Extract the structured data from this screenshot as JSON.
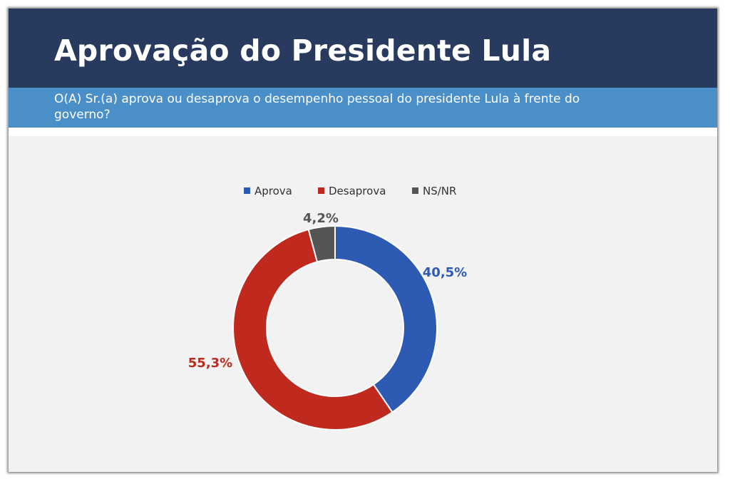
{
  "header": {
    "title": "Aprovação do Presidente Lula",
    "question": "O(A) Sr.(a) aprova ou desaprova o desempenho pessoal do presidente Lula à frente do governo?"
  },
  "chart_data": {
    "type": "pie",
    "donut": true,
    "legend_position": "top",
    "categories": [
      "Aprova",
      "Desaprova",
      "NS/NR"
    ],
    "values": [
      40.5,
      55.3,
      4.2
    ],
    "labels": [
      "40,5%",
      "55,3%",
      "4,2%"
    ],
    "colors": [
      "#2d5bb3",
      "#c0291e",
      "#555555"
    ]
  }
}
